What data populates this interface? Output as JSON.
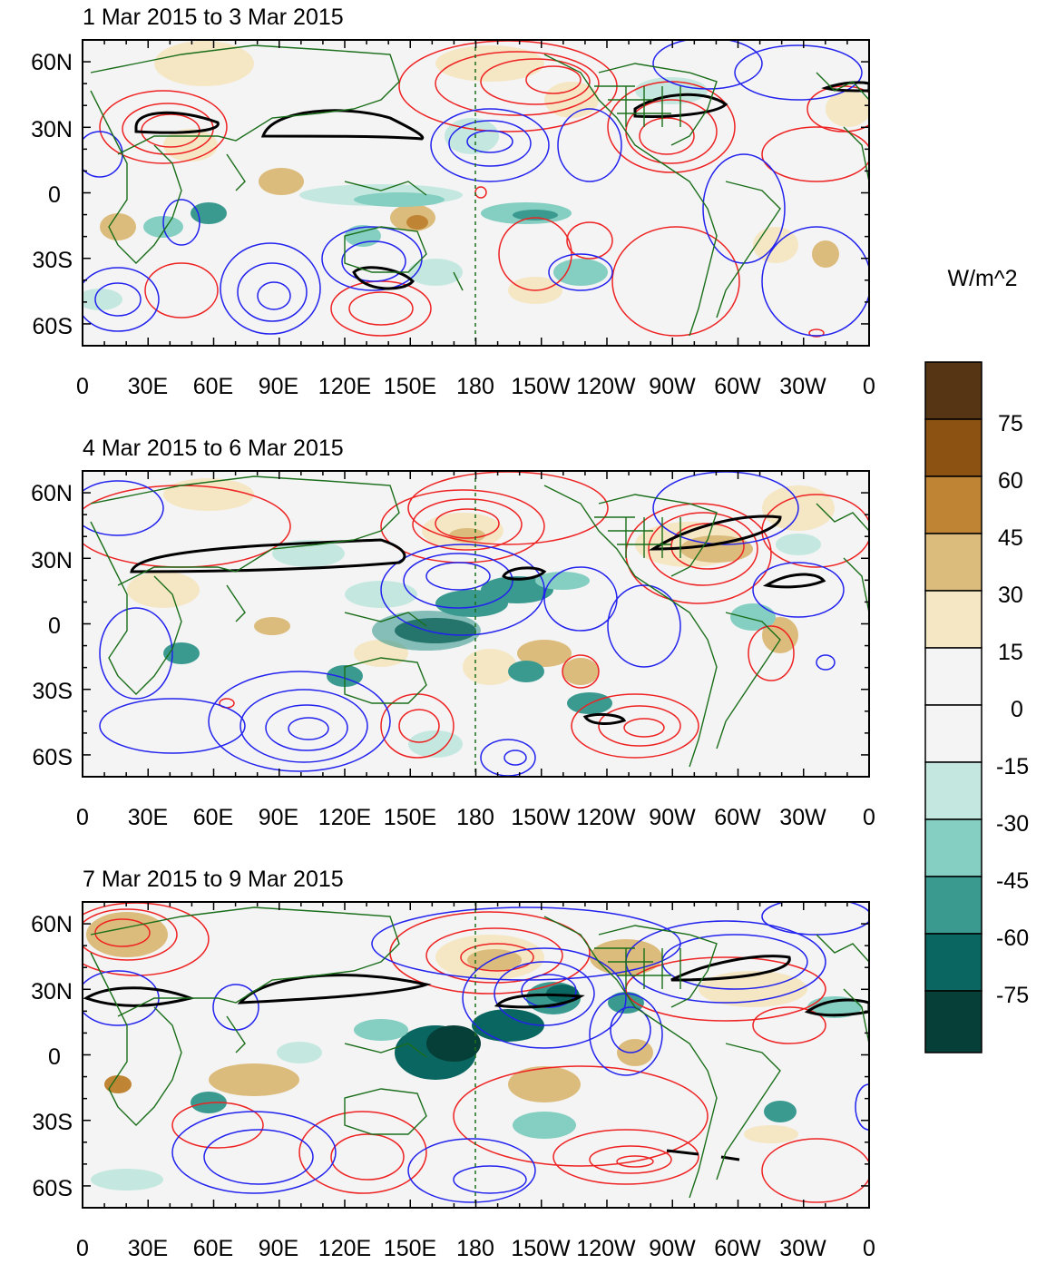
{
  "panels": [
    {
      "title": "1 Mar 2015 to 3 Mar 2015"
    },
    {
      "title": "4 Mar 2015 to 6 Mar 2015"
    },
    {
      "title": "7 Mar 2015 to 9 Mar 2015"
    }
  ],
  "lon_labels": [
    "0",
    "30E",
    "60E",
    "90E",
    "120E",
    "150E",
    "180",
    "150W",
    "120W",
    "90W",
    "60W",
    "30W",
    "0"
  ],
  "lat_labels": [
    "60N",
    "30N",
    "0",
    "30S",
    "60S"
  ],
  "colorbar": {
    "units": "W/m^2",
    "labels": [
      "75",
      "60",
      "45",
      "30",
      "15",
      "0",
      "-15",
      "-30",
      "-45",
      "-60",
      "-75"
    ],
    "colors": [
      "#553514",
      "#8c5212",
      "#bf8434",
      "#dcbc7c",
      "#f5e6c4",
      "#f4f4f4",
      "#f4f4f4",
      "#c4e8e0",
      "#84cec2",
      "#3a9a90",
      "#0a6660",
      "#063f37"
    ]
  },
  "colors": {
    "positive_contour": "#ee2222",
    "negative_contour": "#2222ee",
    "jet_contour": "#000000",
    "coastline": "#1a6e1a",
    "background": "#f4f4f4"
  }
}
